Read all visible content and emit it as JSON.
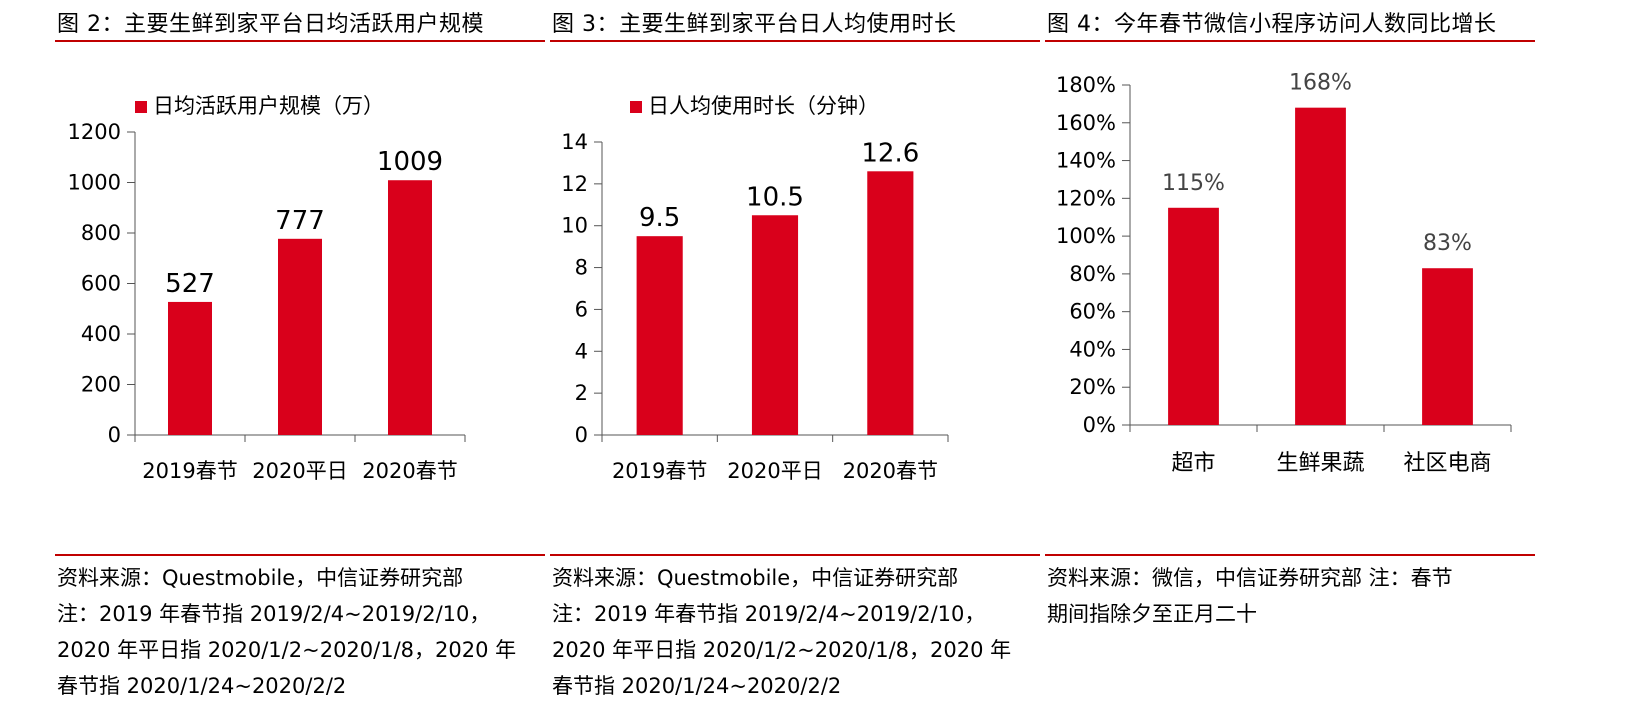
{
  "figures": [
    {
      "title": "图 2：主要生鲜到家平台日均活跃用户规模",
      "source_lines": [
        "资料来源：Questmobile，中信证券研究部",
        "注：2019 年春节指 2019/2/4~2019/2/10，",
        "2020 年平日指 2020/1/2~2020/1/8，2020 年",
        "春节指 2020/1/24~2020/2/2"
      ]
    },
    {
      "title": "图 3：主要生鲜到家平台日人均使用时长",
      "source_lines": [
        "资料来源：Questmobile，中信证券研究部",
        "注：2019 年春节指 2019/2/4~2019/2/10，",
        "2020 年平日指 2020/1/2~2020/1/8，2020 年",
        "春节指 2020/1/24~2020/2/2"
      ]
    },
    {
      "title": "图 4：今年春节微信小程序访问人数同比增长",
      "source_lines": [
        "资料来源：微信，中信证券研究部 注：春节",
        "期间指除夕至正月二十"
      ]
    }
  ],
  "chart_data": [
    {
      "type": "bar",
      "categories": [
        "2019春节",
        "2020平日",
        "2020春节"
      ],
      "series": [
        {
          "name": "日均活跃用户规模（万）",
          "values": [
            527,
            777,
            1009
          ]
        }
      ],
      "data_labels": [
        "527",
        "777",
        "1009"
      ],
      "ylim": [
        0,
        1200
      ],
      "yticks": [
        0,
        200,
        400,
        600,
        800,
        1000,
        1200
      ],
      "ytick_labels": [
        "0",
        "200",
        "400",
        "600",
        "800",
        "1000",
        "1200"
      ],
      "legend": "top",
      "grid": false,
      "color": "#d9001b"
    },
    {
      "type": "bar",
      "categories": [
        "2019春节",
        "2020平日",
        "2020春节"
      ],
      "series": [
        {
          "name": "日人均使用时长（分钟）",
          "values": [
            9.5,
            10.5,
            12.6
          ]
        }
      ],
      "data_labels": [
        "9.5",
        "10.5",
        "12.6"
      ],
      "ylim": [
        0,
        14
      ],
      "yticks": [
        0,
        2,
        4,
        6,
        8,
        10,
        12,
        14
      ],
      "ytick_labels": [
        "0",
        "2",
        "4",
        "6",
        "8",
        "10",
        "12",
        "14"
      ],
      "legend": "top",
      "grid": false,
      "color": "#d9001b"
    },
    {
      "type": "bar",
      "categories": [
        "超市",
        "生鲜果蔬",
        "社区电商"
      ],
      "series": [
        {
          "values": [
            115,
            168,
            83
          ]
        }
      ],
      "data_labels": [
        "115%",
        "168%",
        "83%"
      ],
      "ylim": [
        0,
        180
      ],
      "yticks": [
        0,
        20,
        40,
        60,
        80,
        100,
        120,
        140,
        160,
        180
      ],
      "ytick_labels": [
        "0%",
        "20%",
        "40%",
        "60%",
        "80%",
        "100%",
        "120%",
        "140%",
        "160%",
        "180%"
      ],
      "legend": "none",
      "grid": false,
      "color": "#d9001b"
    }
  ]
}
